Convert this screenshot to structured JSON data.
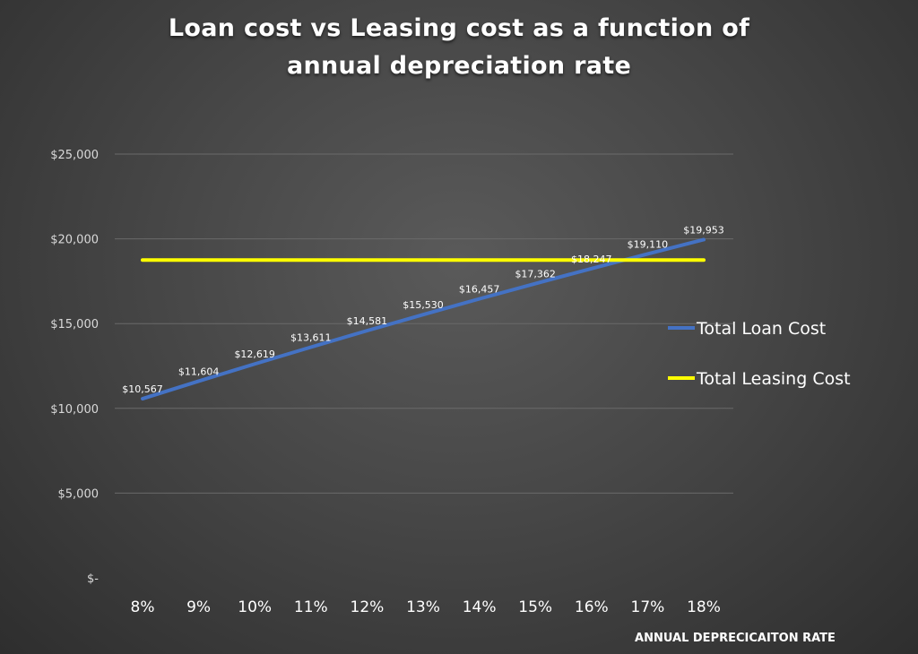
{
  "chart_data": {
    "type": "line",
    "title_line1": "Loan cost vs Leasing cost as a function of",
    "title_line2": "annual depreciation rate",
    "xlabel": "ANNUAL DEPRECICAITON RATE",
    "ylabel": "",
    "categories": [
      "8%",
      "9%",
      "10%",
      "11%",
      "12%",
      "13%",
      "14%",
      "15%",
      "16%",
      "17%",
      "18%"
    ],
    "y_ticks": [
      {
        "value": 0,
        "label": "$-"
      },
      {
        "value": 5000,
        "label": "$5,000"
      },
      {
        "value": 10000,
        "label": "$10,000"
      },
      {
        "value": 15000,
        "label": "$15,000"
      },
      {
        "value": 20000,
        "label": "$20,000"
      },
      {
        "value": 25000,
        "label": "$25,000"
      }
    ],
    "ylim": [
      0,
      25000
    ],
    "grid": true,
    "legend_position": "right",
    "series": [
      {
        "name": "Total Loan Cost",
        "color": "#4472c4",
        "values": [
          10567,
          11604,
          12619,
          13611,
          14581,
          15530,
          16457,
          17362,
          18247,
          19110,
          19953
        ],
        "data_labels": [
          "$10,567",
          "$11,604",
          "$12,619",
          "$13,611",
          "$14,581",
          "$15,530",
          "$16,457",
          "$17,362",
          "$18,247",
          "$19,110",
          "$19,953"
        ]
      },
      {
        "name": "Total Leasing Cost",
        "color": "#ffff00",
        "values": [
          18750,
          18750,
          18750,
          18750,
          18750,
          18750,
          18750,
          18750,
          18750,
          18750,
          18750
        ]
      }
    ],
    "gridline_color": "#6a6a6a"
  }
}
